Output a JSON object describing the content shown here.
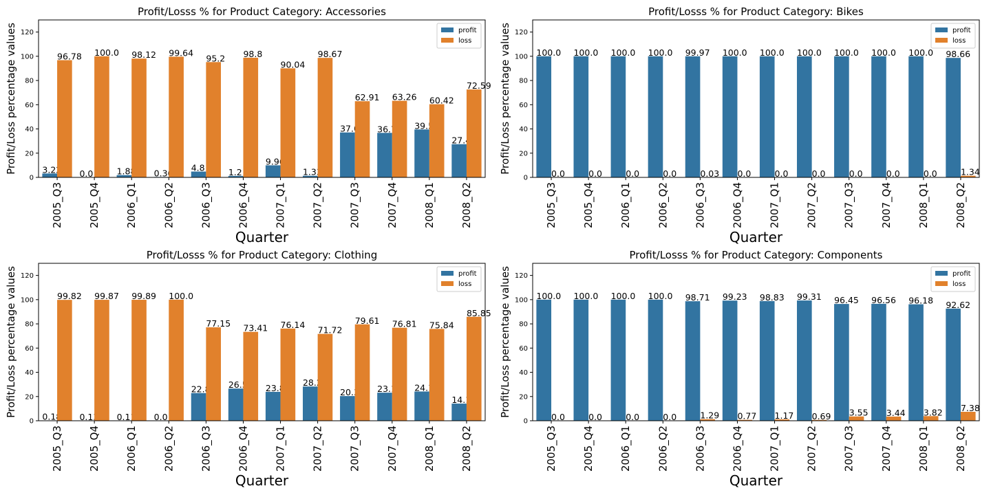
{
  "chart_data": [
    {
      "type": "bar",
      "title": "Profit/Losss % for Product Category: Accessories",
      "xlabel": "Quarter",
      "ylabel": "Profit/Loss percentage values",
      "ylim": [
        0,
        130
      ],
      "yticks": [
        0,
        20,
        40,
        60,
        80,
        100,
        120
      ],
      "legend_position": "top-right",
      "categories": [
        "2005_Q3",
        "2005_Q4",
        "2006_Q1",
        "2006_Q2",
        "2006_Q3",
        "2006_Q4",
        "2007_Q1",
        "2007_Q2",
        "2007_Q3",
        "2007_Q4",
        "2008_Q1",
        "2008_Q2"
      ],
      "series": [
        {
          "name": "profit",
          "color": "#3274a1",
          "values": [
            3.22,
            0.0,
            1.88,
            0.36,
            4.8,
            1.2,
            9.96,
            1.33,
            37.09,
            36.74,
            39.58,
            27.41
          ]
        },
        {
          "name": "loss",
          "color": "#e1812c",
          "values": [
            96.78,
            100.0,
            98.12,
            99.64,
            95.2,
            98.8,
            90.04,
            98.67,
            62.91,
            63.26,
            60.42,
            72.59
          ]
        }
      ]
    },
    {
      "type": "bar",
      "title": "Profit/Losss % for Product Category: Bikes",
      "xlabel": "Quarter",
      "ylabel": "Profit/Loss percentage values",
      "ylim": [
        0,
        130
      ],
      "yticks": [
        0,
        20,
        40,
        60,
        80,
        100,
        120
      ],
      "legend_position": "top-right",
      "categories": [
        "2005_Q3",
        "2005_Q4",
        "2006_Q1",
        "2006_Q2",
        "2006_Q3",
        "2006_Q4",
        "2007_Q1",
        "2007_Q2",
        "2007_Q3",
        "2007_Q4",
        "2008_Q1",
        "2008_Q2"
      ],
      "series": [
        {
          "name": "profit",
          "color": "#3274a1",
          "values": [
            100.0,
            100.0,
            100.0,
            100.0,
            99.97,
            100.0,
            100.0,
            100.0,
            100.0,
            100.0,
            100.0,
            98.66
          ]
        },
        {
          "name": "loss",
          "color": "#e1812c",
          "values": [
            0.0,
            0.0,
            0.0,
            0.0,
            0.03,
            0.0,
            0.0,
            0.0,
            0.0,
            0.0,
            0.0,
            1.34
          ]
        }
      ]
    },
    {
      "type": "bar",
      "title": "Profit/Losss % for Product Category: Clothing",
      "xlabel": "Quarter",
      "ylabel": "Profit/Loss percentage values",
      "ylim": [
        0,
        130
      ],
      "yticks": [
        0,
        20,
        40,
        60,
        80,
        100,
        120
      ],
      "legend_position": "top-right",
      "categories": [
        "2005_Q3",
        "2005_Q4",
        "2006_Q1",
        "2006_Q2",
        "2006_Q3",
        "2006_Q4",
        "2007_Q1",
        "2007_Q2",
        "2007_Q3",
        "2007_Q4",
        "2008_Q1",
        "2008_Q2"
      ],
      "series": [
        {
          "name": "profit",
          "color": "#3274a1",
          "values": [
            0.18,
            0.13,
            0.11,
            0.0,
            22.85,
            26.59,
            23.86,
            28.28,
            20.39,
            23.19,
            24.16,
            14.15
          ]
        },
        {
          "name": "loss",
          "color": "#e1812c",
          "values": [
            99.82,
            99.87,
            99.89,
            100.0,
            77.15,
            73.41,
            76.14,
            71.72,
            79.61,
            76.81,
            75.84,
            85.85
          ]
        }
      ]
    },
    {
      "type": "bar",
      "title": "Profit/Losss % for Product Category: Components",
      "xlabel": "Quarter",
      "ylabel": "Profit/Loss percentage values",
      "ylim": [
        0,
        130
      ],
      "yticks": [
        0,
        20,
        40,
        60,
        80,
        100,
        120
      ],
      "legend_position": "top-right",
      "categories": [
        "2005_Q3",
        "2005_Q4",
        "2006_Q1",
        "2006_Q2",
        "2006_Q3",
        "2006_Q4",
        "2007_Q1",
        "2007_Q2",
        "2007_Q3",
        "2007_Q4",
        "2008_Q1",
        "2008_Q2"
      ],
      "series": [
        {
          "name": "profit",
          "color": "#3274a1",
          "values": [
            100.0,
            100.0,
            100.0,
            100.0,
            98.71,
            99.23,
            98.83,
            99.31,
            96.45,
            96.56,
            96.18,
            92.62
          ]
        },
        {
          "name": "loss",
          "color": "#e1812c",
          "values": [
            0.0,
            0.0,
            0.0,
            0.0,
            1.29,
            0.77,
            1.17,
            0.69,
            3.55,
            3.44,
            3.82,
            7.38
          ]
        }
      ]
    }
  ]
}
